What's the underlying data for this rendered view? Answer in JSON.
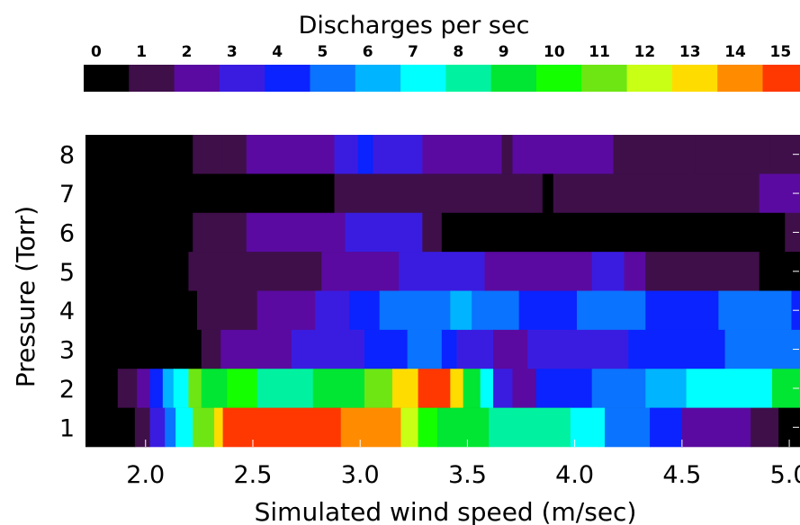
{
  "chart_data": {
    "type": "heatmap",
    "title": "Discharges per sec",
    "colorbar": {
      "tick_labels": [
        "0",
        "1",
        "2",
        "3",
        "4",
        "5",
        "6",
        "7",
        "8",
        "9",
        "10",
        "11",
        "12",
        "13",
        "14",
        "15"
      ],
      "colors": [
        "#000000",
        "#3f0f4a",
        "#5a0aa0",
        "#3a1ce0",
        "#0a23ff",
        "#0a73ff",
        "#00b4ff",
        "#00ffff",
        "#00f2a0",
        "#00e632",
        "#14ff00",
        "#6ee614",
        "#c8ff14",
        "#ffdc00",
        "#ff8c00",
        "#ff3700"
      ]
    },
    "xlabel": "Simulated wind speed  (m/sec)",
    "ylabel": "Pressure  (Torr)",
    "x_tick_labels": [
      "2.0",
      "2.5",
      "3.0",
      "3.5",
      "4.0",
      "4.5",
      "5.0"
    ],
    "x_ticks": [
      2.0,
      2.5,
      3.0,
      3.5,
      4.0,
      4.5,
      5.0
    ],
    "xlim": [
      1.72,
      5.05
    ],
    "y_tick_labels": [
      "1",
      "2",
      "3",
      "4",
      "5",
      "6",
      "7",
      "8"
    ],
    "y_ticks": [
      1,
      2,
      3,
      4,
      5,
      6,
      7,
      8
    ],
    "ylim": [
      0.5,
      8.5
    ],
    "rows": [
      {
        "pressure": 8,
        "segments": [
          {
            "x0": 1.72,
            "x1": 2.22,
            "value": 0
          },
          {
            "x0": 2.22,
            "x1": 2.36,
            "value": 1
          },
          {
            "x0": 2.36,
            "x1": 2.47,
            "value": 1
          },
          {
            "x0": 2.47,
            "x1": 2.88,
            "value": 2
          },
          {
            "x0": 2.88,
            "x1": 2.99,
            "value": 3
          },
          {
            "x0": 2.99,
            "x1": 3.06,
            "value": 4
          },
          {
            "x0": 3.06,
            "x1": 3.29,
            "value": 3
          },
          {
            "x0": 3.29,
            "x1": 3.66,
            "value": 2
          },
          {
            "x0": 3.66,
            "x1": 3.71,
            "value": 1
          },
          {
            "x0": 3.71,
            "x1": 3.9,
            "value": 2
          },
          {
            "x0": 3.9,
            "x1": 4.18,
            "value": 2
          },
          {
            "x0": 4.18,
            "x1": 4.56,
            "value": 1
          },
          {
            "x0": 4.56,
            "x1": 4.91,
            "value": 1
          },
          {
            "x0": 4.91,
            "x1": 5.05,
            "value": 1
          }
        ]
      },
      {
        "pressure": 7,
        "segments": [
          {
            "x0": 1.72,
            "x1": 2.88,
            "value": 0
          },
          {
            "x0": 2.88,
            "x1": 3.85,
            "value": 1
          },
          {
            "x0": 3.85,
            "x1": 3.9,
            "value": 0
          },
          {
            "x0": 3.9,
            "x1": 4.86,
            "value": 1
          },
          {
            "x0": 4.86,
            "x1": 5.05,
            "value": 2
          }
        ]
      },
      {
        "pressure": 6,
        "segments": [
          {
            "x0": 1.72,
            "x1": 2.22,
            "value": 0
          },
          {
            "x0": 2.22,
            "x1": 2.47,
            "value": 1
          },
          {
            "x0": 2.47,
            "x1": 2.93,
            "value": 2
          },
          {
            "x0": 2.93,
            "x1": 3.29,
            "value": 3
          },
          {
            "x0": 3.29,
            "x1": 3.38,
            "value": 1
          },
          {
            "x0": 3.38,
            "x1": 4.98,
            "value": 0
          },
          {
            "x0": 4.98,
            "x1": 5.05,
            "value": 1
          }
        ]
      },
      {
        "pressure": 5,
        "segments": [
          {
            "x0": 1.72,
            "x1": 2.2,
            "value": 0
          },
          {
            "x0": 2.2,
            "x1": 2.82,
            "value": 1
          },
          {
            "x0": 2.82,
            "x1": 3.18,
            "value": 2
          },
          {
            "x0": 3.18,
            "x1": 3.58,
            "value": 3
          },
          {
            "x0": 3.58,
            "x1": 4.08,
            "value": 2
          },
          {
            "x0": 4.08,
            "x1": 4.23,
            "value": 3
          },
          {
            "x0": 4.23,
            "x1": 4.33,
            "value": 2
          },
          {
            "x0": 4.33,
            "x1": 4.86,
            "value": 1
          },
          {
            "x0": 4.86,
            "x1": 5.05,
            "value": 0
          }
        ]
      },
      {
        "pressure": 4,
        "segments": [
          {
            "x0": 1.72,
            "x1": 2.24,
            "value": 0
          },
          {
            "x0": 2.24,
            "x1": 2.52,
            "value": 1
          },
          {
            "x0": 2.52,
            "x1": 2.79,
            "value": 2
          },
          {
            "x0": 2.79,
            "x1": 2.95,
            "value": 3
          },
          {
            "x0": 2.95,
            "x1": 3.09,
            "value": 4
          },
          {
            "x0": 3.09,
            "x1": 3.42,
            "value": 5
          },
          {
            "x0": 3.42,
            "x1": 3.52,
            "value": 6
          },
          {
            "x0": 3.52,
            "x1": 3.74,
            "value": 5
          },
          {
            "x0": 3.74,
            "x1": 4.01,
            "value": 4
          },
          {
            "x0": 4.01,
            "x1": 4.33,
            "value": 5
          },
          {
            "x0": 4.33,
            "x1": 4.67,
            "value": 4
          },
          {
            "x0": 4.67,
            "x1": 5.01,
            "value": 5
          },
          {
            "x0": 5.01,
            "x1": 5.05,
            "value": 4
          }
        ]
      },
      {
        "pressure": 3,
        "segments": [
          {
            "x0": 1.72,
            "x1": 2.26,
            "value": 0
          },
          {
            "x0": 2.26,
            "x1": 2.35,
            "value": 1
          },
          {
            "x0": 2.35,
            "x1": 2.68,
            "value": 2
          },
          {
            "x0": 2.68,
            "x1": 3.02,
            "value": 3
          },
          {
            "x0": 3.02,
            "x1": 3.22,
            "value": 4
          },
          {
            "x0": 3.22,
            "x1": 3.38,
            "value": 5
          },
          {
            "x0": 3.38,
            "x1": 3.45,
            "value": 4
          },
          {
            "x0": 3.45,
            "x1": 3.62,
            "value": 3
          },
          {
            "x0": 3.62,
            "x1": 3.78,
            "value": 2
          },
          {
            "x0": 3.78,
            "x1": 4.25,
            "value": 3
          },
          {
            "x0": 4.25,
            "x1": 4.7,
            "value": 4
          },
          {
            "x0": 4.7,
            "x1": 5.05,
            "value": 5
          }
        ]
      },
      {
        "pressure": 2,
        "segments": [
          {
            "x0": 1.72,
            "x1": 1.87,
            "value": 0
          },
          {
            "x0": 1.87,
            "x1": 1.96,
            "value": 1
          },
          {
            "x0": 1.96,
            "x1": 2.02,
            "value": 2
          },
          {
            "x0": 2.02,
            "x1": 2.08,
            "value": 4
          },
          {
            "x0": 2.08,
            "x1": 2.13,
            "value": 6
          },
          {
            "x0": 2.13,
            "x1": 2.2,
            "value": 7
          },
          {
            "x0": 2.2,
            "x1": 2.26,
            "value": 11
          },
          {
            "x0": 2.26,
            "x1": 2.38,
            "value": 9
          },
          {
            "x0": 2.38,
            "x1": 2.52,
            "value": 10
          },
          {
            "x0": 2.52,
            "x1": 2.78,
            "value": 8
          },
          {
            "x0": 2.78,
            "x1": 3.02,
            "value": 9
          },
          {
            "x0": 3.02,
            "x1": 3.15,
            "value": 11
          },
          {
            "x0": 3.15,
            "x1": 3.27,
            "value": 13
          },
          {
            "x0": 3.27,
            "x1": 3.42,
            "value": 15
          },
          {
            "x0": 3.42,
            "x1": 3.48,
            "value": 13
          },
          {
            "x0": 3.48,
            "x1": 3.56,
            "value": 9
          },
          {
            "x0": 3.56,
            "x1": 3.62,
            "value": 7
          },
          {
            "x0": 3.62,
            "x1": 3.71,
            "value": 3
          },
          {
            "x0": 3.71,
            "x1": 3.82,
            "value": 2
          },
          {
            "x0": 3.82,
            "x1": 4.08,
            "value": 4
          },
          {
            "x0": 4.08,
            "x1": 4.33,
            "value": 5
          },
          {
            "x0": 4.33,
            "x1": 4.52,
            "value": 6
          },
          {
            "x0": 4.52,
            "x1": 4.92,
            "value": 7
          },
          {
            "x0": 4.92,
            "x1": 5.05,
            "value": 9
          }
        ]
      },
      {
        "pressure": 1,
        "segments": [
          {
            "x0": 1.72,
            "x1": 1.95,
            "value": 0
          },
          {
            "x0": 1.95,
            "x1": 2.02,
            "value": 1
          },
          {
            "x0": 2.02,
            "x1": 2.09,
            "value": 3
          },
          {
            "x0": 2.09,
            "x1": 2.14,
            "value": 5
          },
          {
            "x0": 2.14,
            "x1": 2.22,
            "value": 7
          },
          {
            "x0": 2.22,
            "x1": 2.32,
            "value": 11
          },
          {
            "x0": 2.32,
            "x1": 2.36,
            "value": 13
          },
          {
            "x0": 2.36,
            "x1": 2.91,
            "value": 15
          },
          {
            "x0": 2.91,
            "x1": 3.19,
            "value": 14
          },
          {
            "x0": 3.19,
            "x1": 3.27,
            "value": 12
          },
          {
            "x0": 3.27,
            "x1": 3.36,
            "value": 10
          },
          {
            "x0": 3.36,
            "x1": 3.6,
            "value": 9
          },
          {
            "x0": 3.6,
            "x1": 3.98,
            "value": 8
          },
          {
            "x0": 3.98,
            "x1": 4.14,
            "value": 7
          },
          {
            "x0": 4.14,
            "x1": 4.35,
            "value": 5
          },
          {
            "x0": 4.35,
            "x1": 4.5,
            "value": 4
          },
          {
            "x0": 4.5,
            "x1": 4.82,
            "value": 2
          },
          {
            "x0": 4.82,
            "x1": 4.95,
            "value": 1
          },
          {
            "x0": 4.95,
            "x1": 5.05,
            "value": 0
          }
        ]
      }
    ]
  }
}
